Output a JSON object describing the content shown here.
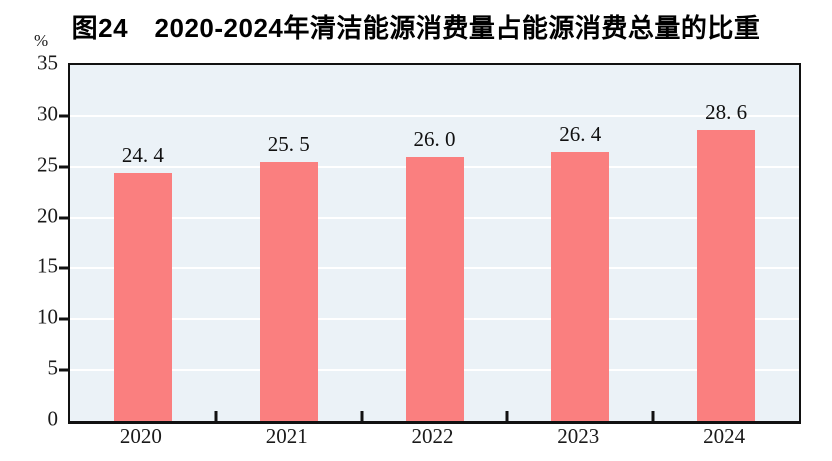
{
  "chart_data": {
    "type": "bar",
    "title": "图24　2020-2024年清洁能源消费量占能源消费总量的比重",
    "unit_label": "%",
    "categories": [
      "2020",
      "2021",
      "2022",
      "2023",
      "2024"
    ],
    "values": [
      24.4,
      25.5,
      26.0,
      26.4,
      28.6
    ],
    "value_labels": [
      "24. 4",
      "25. 5",
      "26. 0",
      "26. 4",
      "28. 6"
    ],
    "ylabel": "%",
    "xlabel": "",
    "ylim": [
      0,
      35
    ],
    "yticks": [
      0,
      5,
      10,
      15,
      20,
      25,
      30,
      35
    ],
    "gridline_values": [
      5,
      10,
      15,
      20,
      25,
      30
    ],
    "y_tick_mark_values": [
      5,
      10,
      15,
      20,
      25,
      30
    ],
    "grid": true,
    "legend": "none",
    "colors": {
      "bar": "#FA7F7F",
      "plot_background": "#EBF2F7",
      "gridline": "#FFFFFF",
      "axis": "#111111",
      "text": "#1A1A1A"
    }
  }
}
